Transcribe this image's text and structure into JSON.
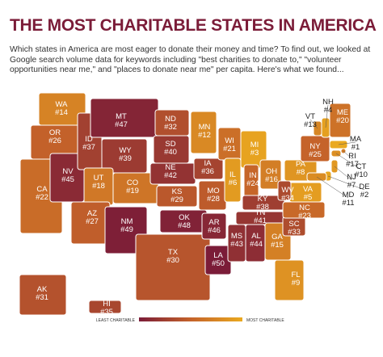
{
  "title": "THE MOST CHARITABLE STATES IN AMERICA",
  "intro": "Which states in America are most eager to donate their money and time? To find out, we looked at Google search volume data for keywords including \"best charities to donate to,\" \"volunteer opportunities near me,\" and \"places to donate near me\" per capita. Here's what we found...",
  "legend": {
    "least_label": "LEAST CHARITABLE",
    "most_label": "MOST CHARITABLE",
    "colors": [
      "#7b1c38",
      "#c4622a",
      "#eaa91f"
    ]
  },
  "states": [
    {
      "abbr": "WA",
      "value": 14,
      "label": "#14"
    },
    {
      "abbr": "OR",
      "value": 26,
      "label": "#26"
    },
    {
      "abbr": "CA",
      "value": 22,
      "label": "#22"
    },
    {
      "abbr": "NV",
      "value": 45,
      "label": "#45"
    },
    {
      "abbr": "ID",
      "value": 37,
      "label": "#37"
    },
    {
      "abbr": "MT",
      "value": 47,
      "label": "#47"
    },
    {
      "abbr": "WY",
      "value": 39,
      "label": "#39"
    },
    {
      "abbr": "UT",
      "value": 18,
      "label": "#18"
    },
    {
      "abbr": "AZ",
      "value": 27,
      "label": "#27"
    },
    {
      "abbr": "CO",
      "value": 19,
      "label": "#19"
    },
    {
      "abbr": "NM",
      "value": 49,
      "label": "#49"
    },
    {
      "abbr": "ND",
      "value": 32,
      "label": "#32"
    },
    {
      "abbr": "SD",
      "value": 40,
      "label": "#40"
    },
    {
      "abbr": "NE",
      "value": 42,
      "label": "#42"
    },
    {
      "abbr": "KS",
      "value": 29,
      "label": "#29"
    },
    {
      "abbr": "OK",
      "value": 48,
      "label": "#48"
    },
    {
      "abbr": "TX",
      "value": 30,
      "label": "#30"
    },
    {
      "abbr": "MN",
      "value": 12,
      "label": "#12"
    },
    {
      "abbr": "IA",
      "value": 36,
      "label": "#36"
    },
    {
      "abbr": "MO",
      "value": 28,
      "label": "#28"
    },
    {
      "abbr": "AR",
      "value": 46,
      "label": "#46"
    },
    {
      "abbr": "LA",
      "value": 50,
      "label": "#50"
    },
    {
      "abbr": "WI",
      "value": 21,
      "label": "#21"
    },
    {
      "abbr": "IL",
      "value": 6,
      "label": "#6"
    },
    {
      "abbr": "MI",
      "value": 3,
      "label": "#3"
    },
    {
      "abbr": "IN",
      "value": 24,
      "label": "#24"
    },
    {
      "abbr": "OH",
      "value": 16,
      "label": "#16"
    },
    {
      "abbr": "KY",
      "value": 38,
      "label": "#38"
    },
    {
      "abbr": "TN",
      "value": 41,
      "label": "#41"
    },
    {
      "abbr": "MS",
      "value": 43,
      "label": "#43"
    },
    {
      "abbr": "AL",
      "value": 44,
      "label": "#44"
    },
    {
      "abbr": "GA",
      "value": 15,
      "label": "#15"
    },
    {
      "abbr": "FL",
      "value": 9,
      "label": "#9"
    },
    {
      "abbr": "SC",
      "value": 33,
      "label": "#33"
    },
    {
      "abbr": "NC",
      "value": 23,
      "label": "#23"
    },
    {
      "abbr": "VA",
      "value": 5,
      "label": "#5"
    },
    {
      "abbr": "WV",
      "value": 34,
      "label": "#34"
    },
    {
      "abbr": "PA",
      "value": 8,
      "label": "#8"
    },
    {
      "abbr": "NY",
      "value": 25,
      "label": "#25"
    },
    {
      "abbr": "VT",
      "value": 13,
      "label": "#13"
    },
    {
      "abbr": "NH",
      "value": 4,
      "label": "#4"
    },
    {
      "abbr": "ME",
      "value": 20,
      "label": "#20"
    },
    {
      "abbr": "MA",
      "value": 1,
      "label": "#1"
    },
    {
      "abbr": "RI",
      "value": 17,
      "label": "#17"
    },
    {
      "abbr": "CT",
      "value": 10,
      "label": "#10"
    },
    {
      "abbr": "NJ",
      "value": 7,
      "label": "#7"
    },
    {
      "abbr": "DE",
      "value": 2,
      "label": "#2"
    },
    {
      "abbr": "MD",
      "value": 11,
      "label": "#11"
    },
    {
      "abbr": "AK",
      "value": 31,
      "label": "#31"
    },
    {
      "abbr": "HI",
      "value": 35,
      "label": "#35"
    }
  ]
}
